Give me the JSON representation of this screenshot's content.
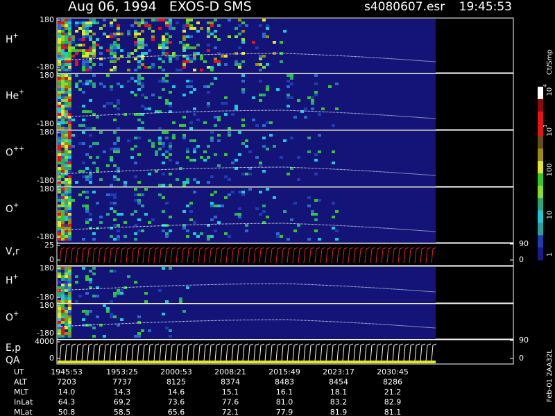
{
  "header": {
    "title": "Aug 06, 1994   EXOS-D SMS",
    "file": "s4080607.esr",
    "time": "19:45:53"
  },
  "panels": [
    {
      "label": {
        "base": "H",
        "sup": "+"
      },
      "yticks": [
        180,
        -180
      ]
    },
    {
      "label": {
        "base": "He",
        "sup": "+"
      },
      "yticks": [
        180,
        -180
      ]
    },
    {
      "label": {
        "base": "O",
        "sup": "++"
      },
      "yticks": [
        180,
        -180
      ]
    },
    {
      "label": {
        "base": "O",
        "sup": "+"
      },
      "yticks": [
        180,
        -180
      ]
    },
    {
      "label": {
        "base": "V,r"
      },
      "yticks": [
        25,
        0
      ],
      "y2ticks": [
        90,
        0
      ]
    },
    {
      "label": {
        "base": "H",
        "sup": "+"
      },
      "yticks": [
        180,
        -180
      ]
    },
    {
      "label": {
        "base": "O",
        "sup": "+"
      },
      "yticks": [
        180,
        -180
      ]
    },
    {
      "label": {
        "base": "E,p",
        "line2": "QA"
      },
      "yticks": [
        4000,
        0
      ],
      "y2ticks": [
        90,
        0
      ]
    }
  ],
  "colorbar": {
    "title": "Ct/Smp",
    "ticks": [
      {
        "base": "10",
        "sup": "4"
      },
      {
        "base": "10",
        "sup": "3"
      },
      {
        "base": "100"
      },
      {
        "base": "10"
      },
      {
        "base": "1"
      }
    ]
  },
  "orbit": {
    "rows": [
      {
        "name": "UT",
        "values": [
          "1945:53",
          "1953:25",
          "2000:53",
          "2008:21",
          "2015:49",
          "2023:17",
          "2030:45"
        ]
      },
      {
        "name": "ALT",
        "values": [
          "7203",
          "7737",
          "8125",
          "8374",
          "8483",
          "8454",
          "8286"
        ]
      },
      {
        "name": "MLT",
        "values": [
          "14.0",
          "14.3",
          "14.6",
          "15.1",
          "16.1",
          "18.1",
          "21.2"
        ]
      },
      {
        "name": "InLat",
        "values": [
          "64.3",
          "69.2",
          "73.6",
          "77.6",
          "81.0",
          "83.2",
          "82.9"
        ]
      },
      {
        "name": "MLat",
        "values": [
          "50.8",
          "58.5",
          "65.6",
          "72.1",
          "77.9",
          "81.9",
          "81.1"
        ]
      }
    ]
  },
  "footer": "Feb-01 2AA32L"
}
